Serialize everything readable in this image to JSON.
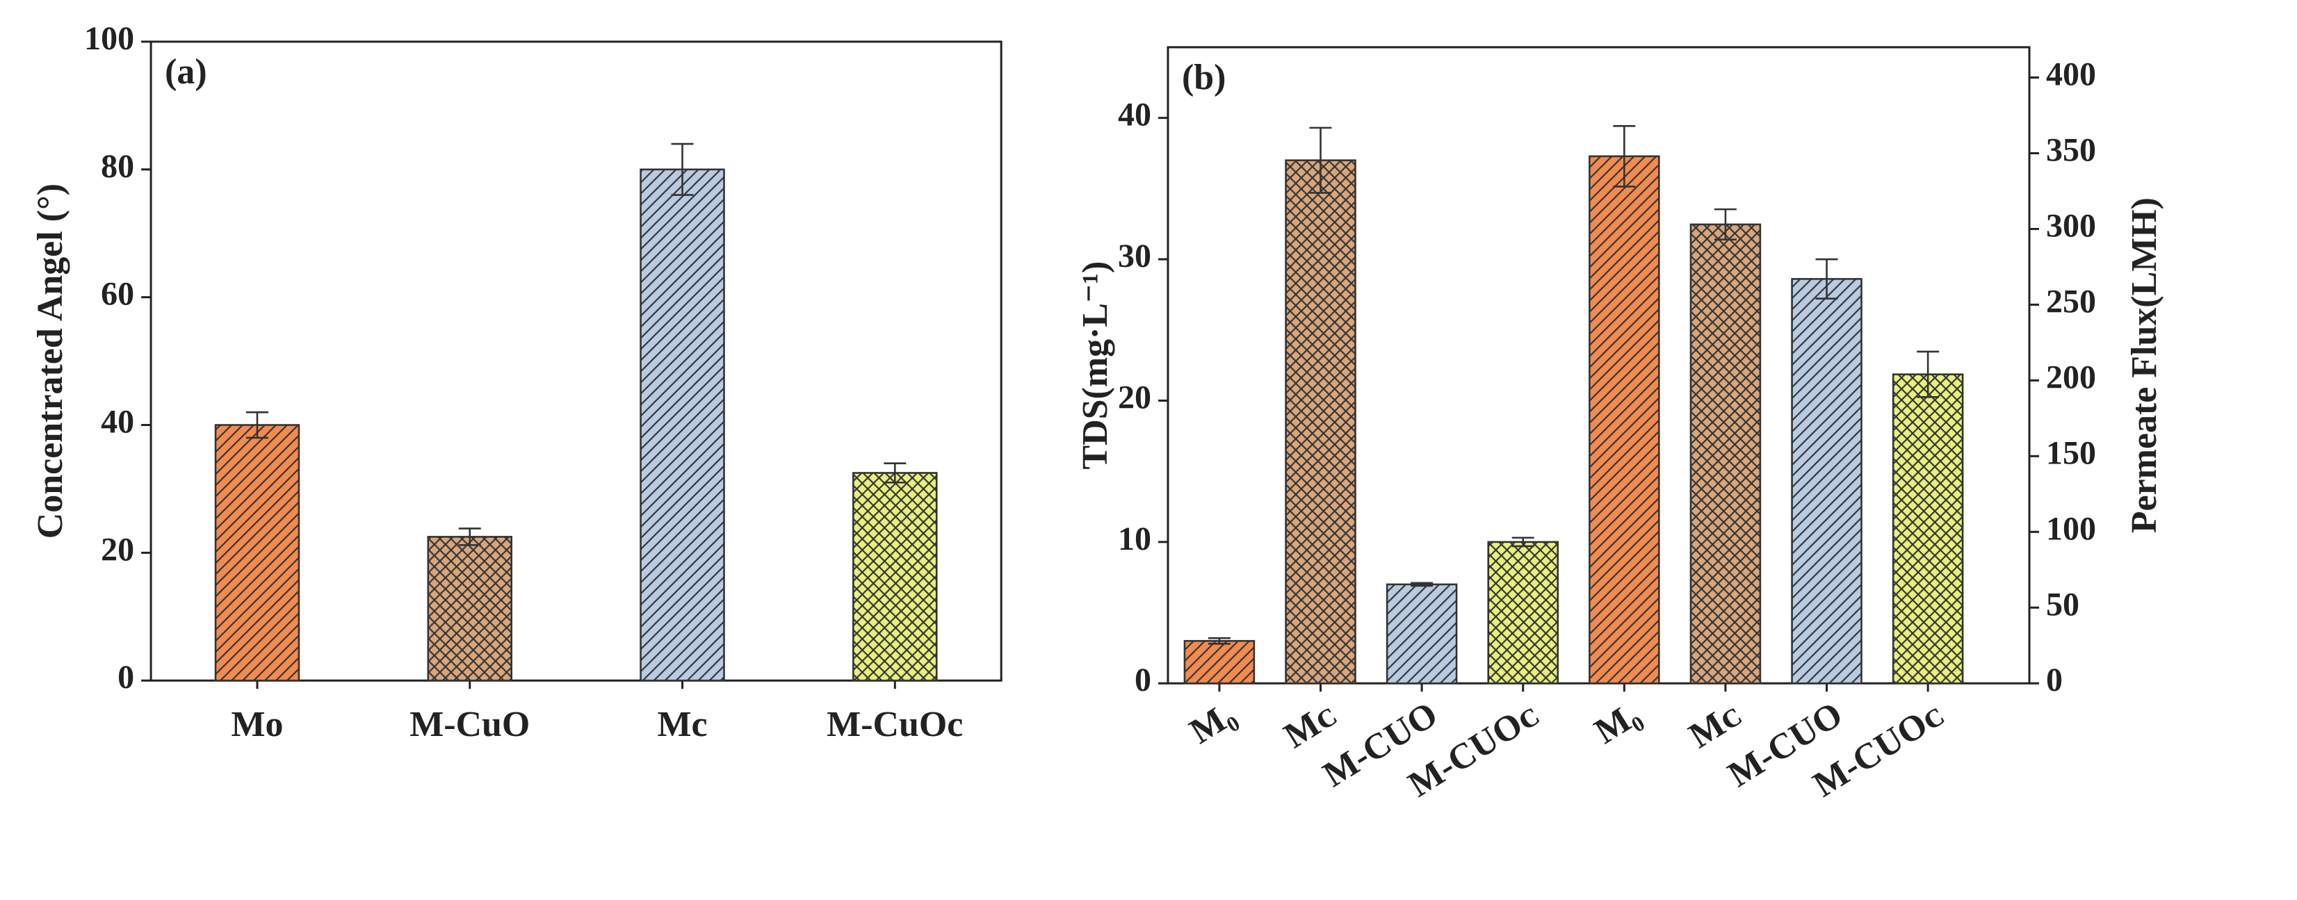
{
  "chart_data": [
    {
      "type": "bar",
      "panel_label": "(a)",
      "y_label": "Concentrated Angel (°)",
      "categories": [
        "Mo",
        "M-CuO",
        "Mc",
        "M-CuOc"
      ],
      "series": [
        {
          "values": [
            40,
            22.5,
            80,
            32.5
          ],
          "errors": [
            2,
            1.3,
            4,
            1.5
          ]
        }
      ],
      "colors": [
        "#f28b4f",
        "#d9a67c",
        "#b9cbe3",
        "#e8f07c"
      ],
      "patterns": [
        "diagonal",
        "cross",
        "diagonal",
        "cross"
      ],
      "ylim": [
        0,
        100
      ],
      "yticks": [
        0,
        20,
        40,
        60,
        80,
        100
      ]
    },
    {
      "type": "bar",
      "panel_label": "(b)",
      "y_label": "TDS(mg·L⁻¹)",
      "y2_label": "Permeate Flux(LMH)",
      "categories": [
        "M₀",
        "Mᴄ",
        "M-CUO",
        "M-CUOᴄ",
        "M₀",
        "Mᴄ",
        "M-CUO",
        "M-CUOᴄ"
      ],
      "series": [
        {
          "values": [
            3,
            37,
            7,
            10,
            null,
            null,
            null,
            null
          ],
          "errors": [
            0.2,
            2.3,
            0.1,
            0.3,
            null,
            null,
            null,
            null
          ]
        },
        {
          "axis": "y2",
          "values": [
            null,
            null,
            null,
            null,
            348,
            303,
            267,
            204
          ],
          "errors": [
            null,
            null,
            null,
            null,
            20,
            10,
            13,
            15
          ]
        }
      ],
      "colors": [
        "#f28b4f",
        "#d9a67c",
        "#b9cbe3",
        "#e8f07c",
        "#f28b4f",
        "#d9a67c",
        "#b9cbe3",
        "#e8f07c"
      ],
      "patterns": [
        "diagonal",
        "cross",
        "diagonal",
        "cross",
        "diagonal",
        "cross",
        "diagonal",
        "cross"
      ],
      "ylim": [
        0,
        45
      ],
      "yticks": [
        0,
        10,
        20,
        30,
        40
      ],
      "y2lim": [
        0,
        420
      ],
      "y2ticks": [
        0,
        50,
        100,
        150,
        200,
        250,
        300,
        350,
        400
      ]
    }
  ]
}
